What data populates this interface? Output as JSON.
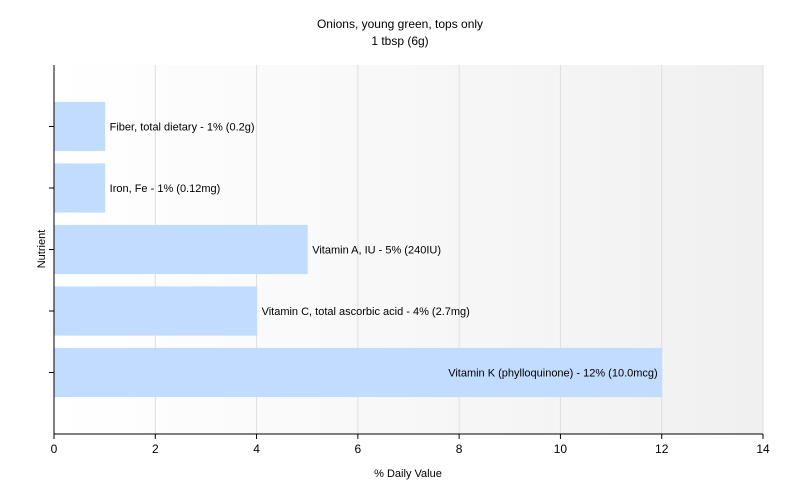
{
  "chart_data": {
    "type": "bar",
    "orientation": "horizontal",
    "title": "Onions, young green, tops only",
    "subtitle": "1 tbsp (6g)",
    "xlabel": "% Daily Value",
    "ylabel": "Nutrient",
    "xlim": [
      0,
      14
    ],
    "xticks": [
      0,
      2,
      4,
      6,
      8,
      10,
      12,
      14
    ],
    "grid": true,
    "bar_color": "#c2dcff",
    "categories": [
      "Fiber, total dietary",
      "Iron, Fe",
      "Vitamin A, IU",
      "Vitamin C, total ascorbic acid",
      "Vitamin K (phylloquinone)"
    ],
    "values": [
      1,
      1,
      5,
      4,
      12
    ],
    "data_labels": [
      "Fiber, total dietary - 1% (0.2g)",
      "Iron, Fe - 1% (0.12mg)",
      "Vitamin A, IU - 5% (240IU)",
      "Vitamin C, total ascorbic acid - 4% (2.7mg)",
      "Vitamin K (phylloquinone) - 12% (10.0mcg)"
    ]
  }
}
